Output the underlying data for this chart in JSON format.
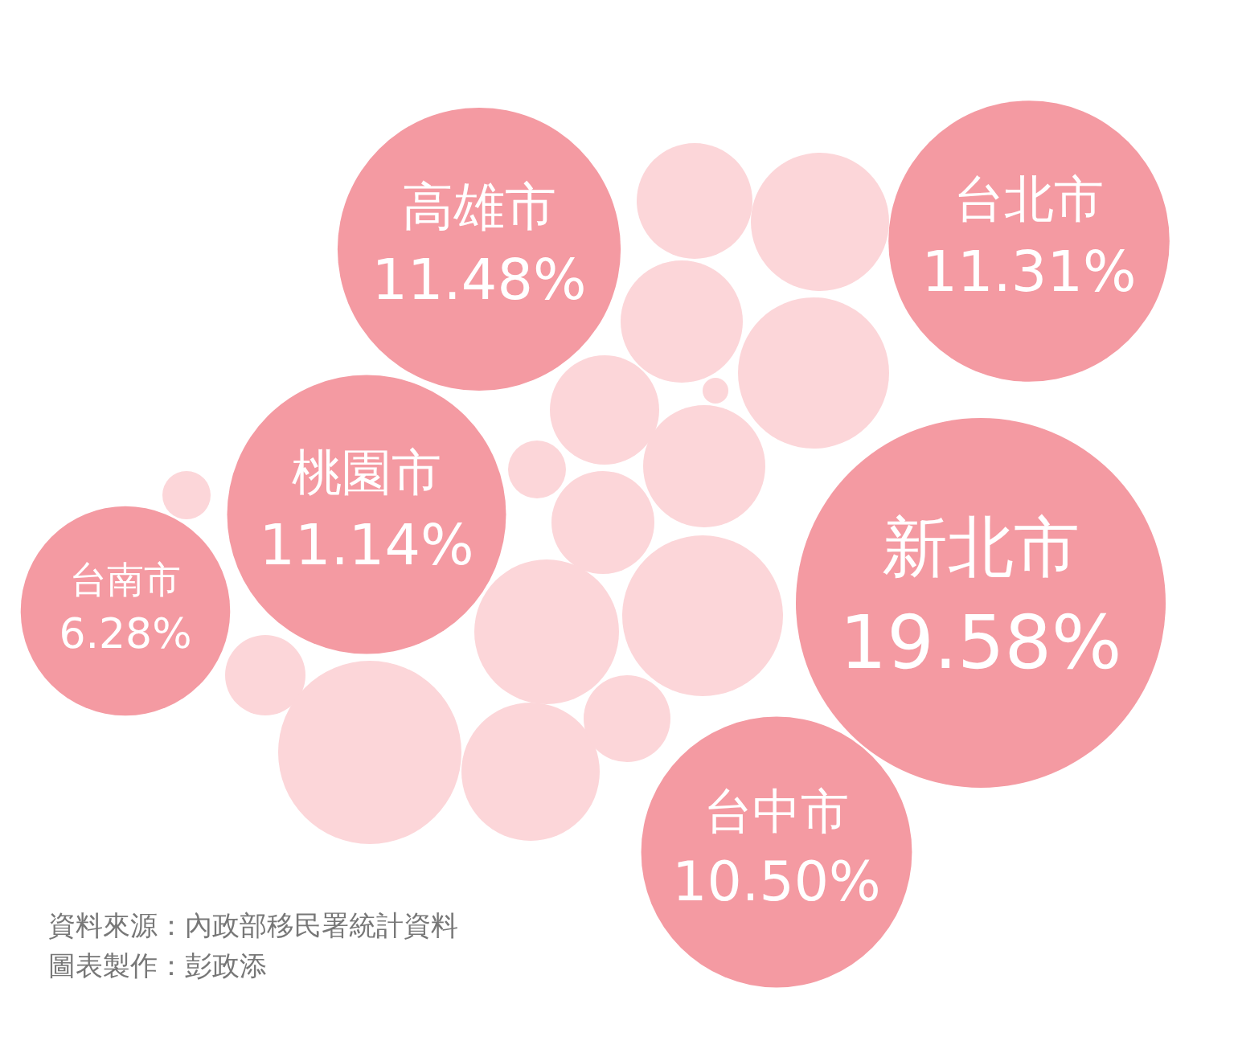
{
  "chart_data": {
    "type": "other",
    "categories": [
      "高雄市",
      "台北市",
      "桃園市",
      "新北市",
      "台南市",
      "台中市"
    ],
    "values": [
      11.48,
      11.31,
      11.14,
      19.58,
      6.28,
      10.5
    ],
    "value_labels": [
      "11.48%",
      "11.31%",
      "11.14%",
      "19.58%",
      "6.28%",
      "10.50%"
    ],
    "color": "#f49aa2",
    "annotations": [
      "資料來源：內政部移民署統計資料",
      "圖表製作：彭政添"
    ]
  }
}
